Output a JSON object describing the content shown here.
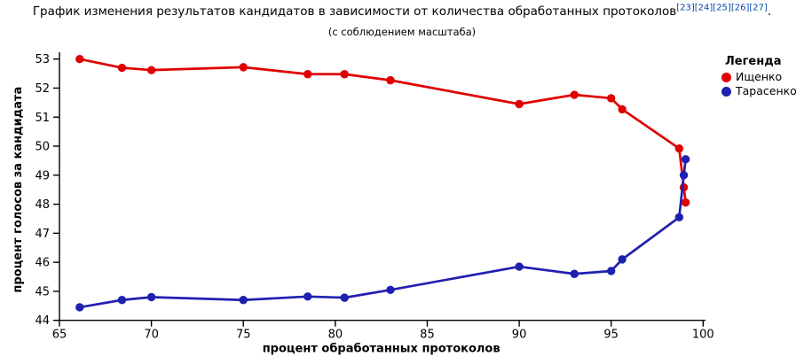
{
  "header": {
    "title": "График изменения результатов кандидатов в зависимости от количества обработанных протоколов",
    "refs": [
      "[23]",
      "[24]",
      "[25]",
      "[26]",
      "[27]"
    ],
    "title_suffix": ".",
    "subtitle": "(с соблюдением масштаба)"
  },
  "legend": {
    "title": "Легенда"
  },
  "chart_data": {
    "type": "line",
    "title": "График изменения результатов кандидатов в зависимости от количества обработанных протоколов (с соблюдением масштаба)",
    "xlabel": "процент обработанных протоколов",
    "ylabel": "процент голосов за кандидата",
    "xlim": [
      65,
      100
    ],
    "ylim": [
      44,
      53
    ],
    "xticks": [
      65,
      70,
      75,
      80,
      85,
      90,
      95,
      100
    ],
    "yticks": [
      44,
      45,
      46,
      47,
      48,
      49,
      50,
      51,
      52,
      53
    ],
    "grid": false,
    "legend_position": "right",
    "x": [
      66.1,
      68.4,
      70,
      75,
      78.5,
      80.5,
      83,
      90,
      93,
      95,
      95.6,
      98.7,
      98.95,
      99.05
    ],
    "series": [
      {
        "name": "Ищенко",
        "color": "#e00000",
        "values": [
          53.0,
          52.7,
          52.62,
          52.72,
          52.48,
          52.48,
          52.27,
          51.45,
          51.77,
          51.65,
          51.27,
          49.92,
          48.58,
          48.06
        ]
      },
      {
        "name": "Тарасенко",
        "color": "#2020b0",
        "values": [
          44.45,
          44.7,
          44.8,
          44.7,
          44.82,
          44.78,
          45.05,
          45.85,
          45.6,
          45.7,
          46.1,
          47.55,
          49.0,
          49.55
        ]
      }
    ]
  },
  "colors": {
    "reference_link": "#0645ad",
    "axis": "#000000",
    "text": "#000000",
    "background": "#ffffff"
  }
}
